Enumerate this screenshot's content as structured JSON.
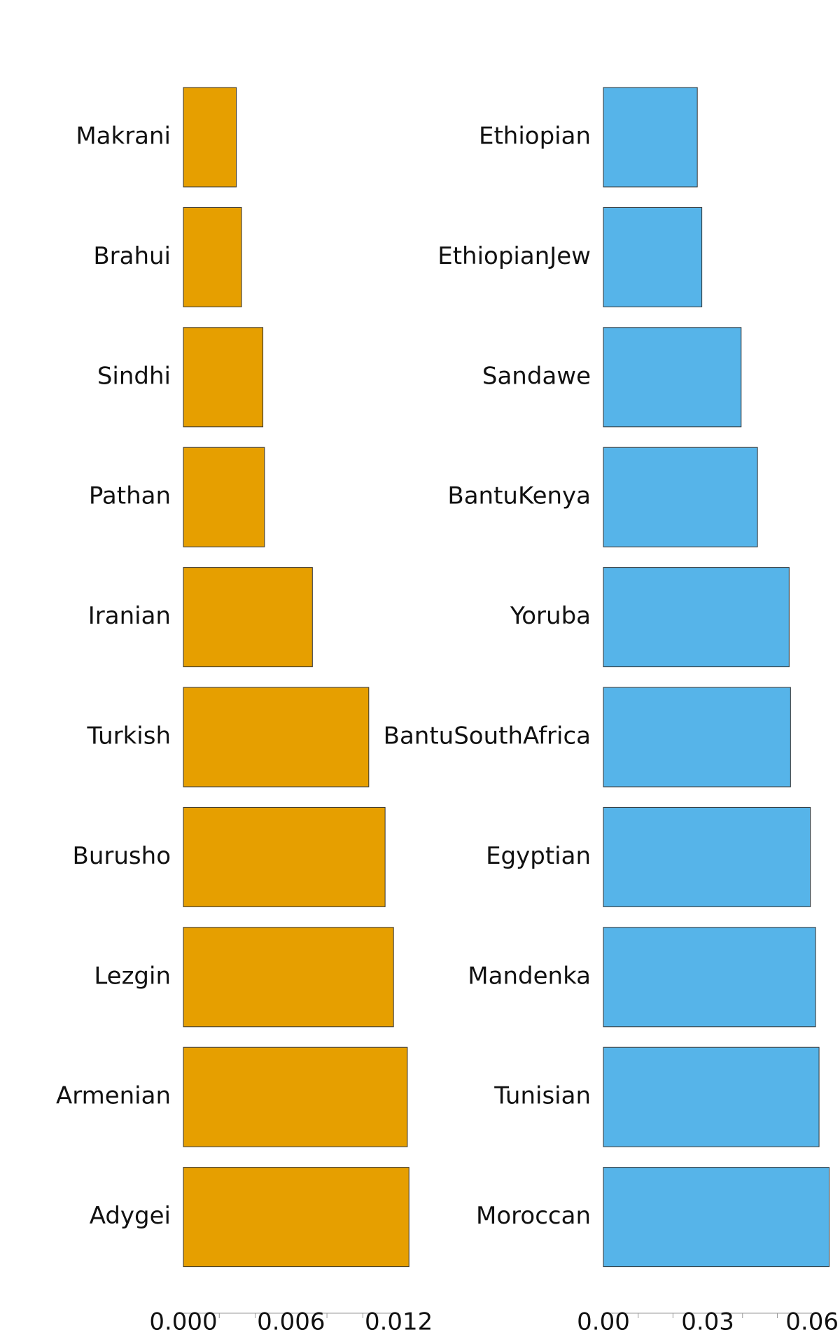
{
  "chart_data": [
    {
      "type": "barh",
      "categories": [
        "Makrani",
        "Brahui",
        "Sindhi",
        "Pathan",
        "Iranian",
        "Turkish",
        "Burusho",
        "Lezgin",
        "Armenian",
        "Adygei"
      ],
      "values": [
        0.00295,
        0.00324,
        0.00443,
        0.00452,
        0.00719,
        0.01033,
        0.01124,
        0.01171,
        0.01248,
        0.01257
      ],
      "color": "#e69f00",
      "xlim": [
        0,
        0.0126
      ],
      "xticks": [
        {
          "value": 0,
          "label": "0.000"
        },
        0.006,
        0.012
      ],
      "xminor_ticks": [
        0.002,
        0.004,
        0.008,
        0.01
      ]
    },
    {
      "type": "barh",
      "categories": [
        "Ethiopian",
        "EthiopianJew",
        "Sandawe",
        "BantuKenya",
        "Yoruba",
        "BantuSouthAfrica",
        "Egyptian",
        "Mandenka",
        "Tunisian",
        "Moroccan"
      ],
      "values": [
        0.027,
        0.0283,
        0.0396,
        0.0443,
        0.0534,
        0.0538,
        0.0595,
        0.061,
        0.062,
        0.0649
      ],
      "color": "#56b4e9",
      "xlim": [
        0,
        0.065
      ],
      "xticks": [
        {
          "value": 0,
          "label": "0.00"
        },
        0.03,
        0.06
      ],
      "xminor_ticks": [
        0.01,
        0.02,
        0.04,
        0.05
      ]
    }
  ]
}
